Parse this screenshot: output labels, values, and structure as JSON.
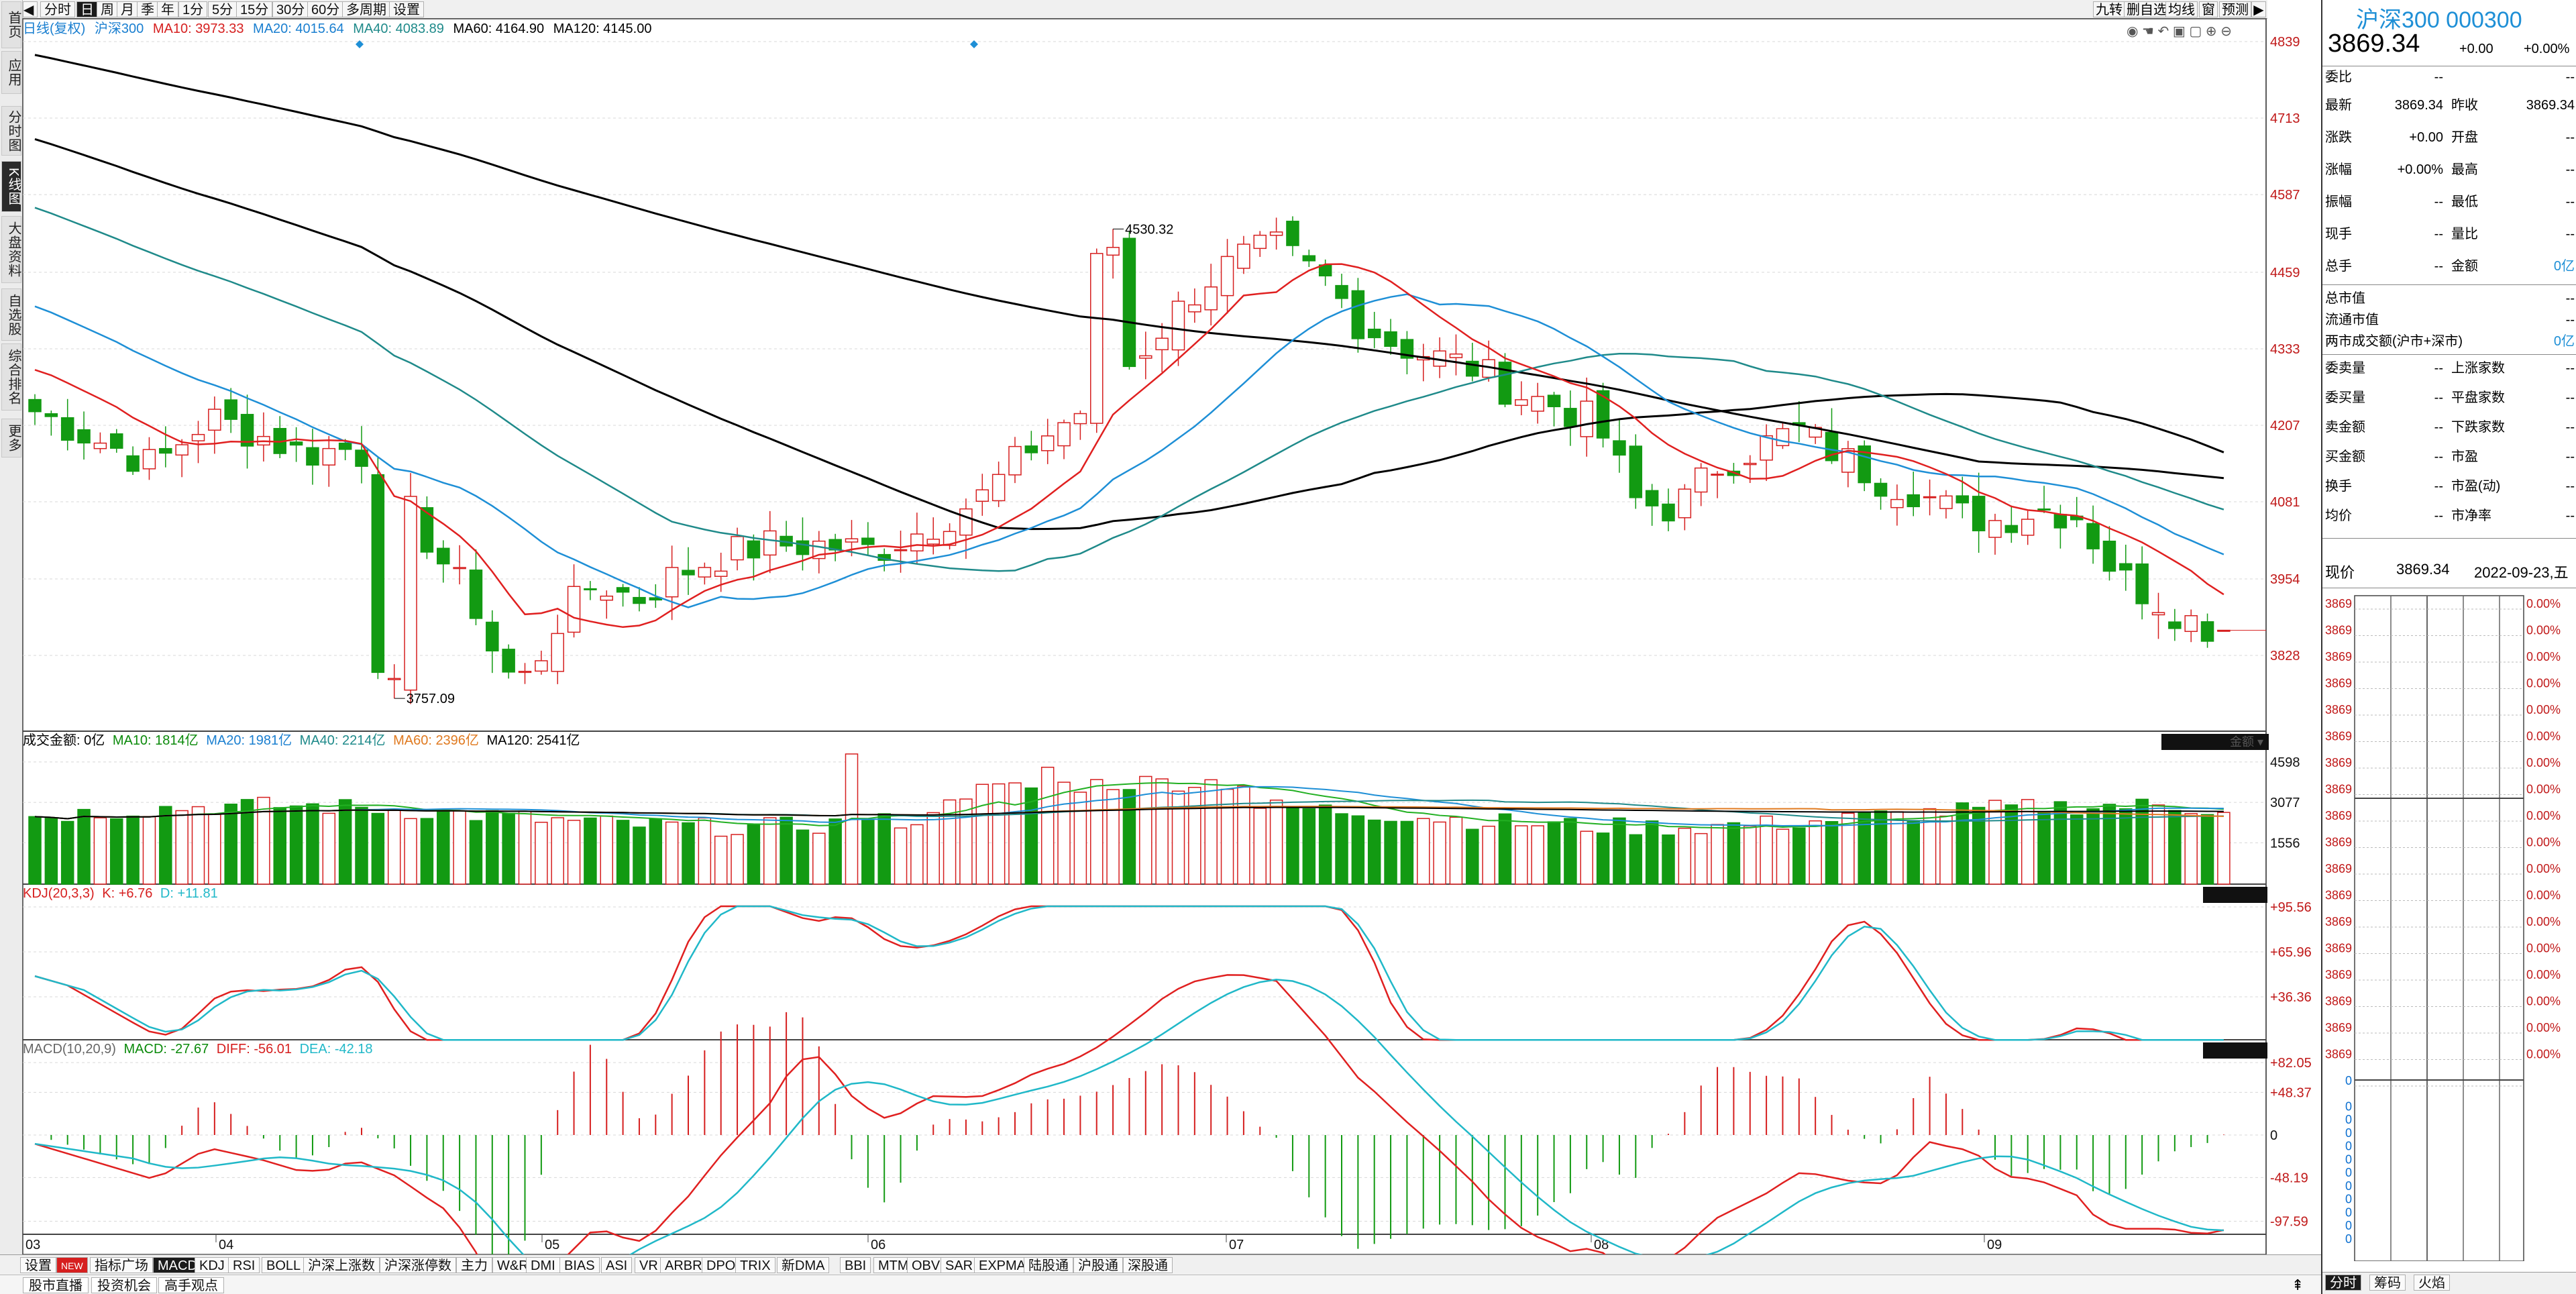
{
  "sidebar": {
    "items": [
      {
        "label": "首页",
        "active": false
      },
      {
        "label": "应用",
        "active": false
      },
      {
        "label": "分时图",
        "active": false
      },
      {
        "label": "K线图",
        "active": true
      },
      {
        "label": "大盘资料",
        "active": false
      },
      {
        "label": "自选股",
        "active": false
      },
      {
        "label": "综合排名",
        "active": false
      },
      {
        "label": "更多",
        "active": false
      }
    ]
  },
  "toolbar": {
    "periods": [
      "分时",
      "日",
      "周",
      "月",
      "季",
      "年",
      "1分",
      "5分",
      "15分",
      "30分",
      "60分",
      "多周期",
      "设置"
    ],
    "active_period": "日",
    "right_tools": [
      "九转",
      "删自选",
      "均线",
      "窗",
      "预测"
    ]
  },
  "ma_info": {
    "chart_name": "日线(复权)",
    "stock": "沪深300",
    "ma10": "MA10: 3973.33",
    "ma20": "MA20: 4015.64",
    "ma40": "MA40: 4083.89",
    "ma60": "MA60: 4164.90",
    "ma120": "MA120: 4145.00"
  },
  "price_axis": [
    "4839",
    "4713",
    "4587",
    "4459",
    "4333",
    "4207",
    "4081",
    "3954",
    "3828"
  ],
  "annotations": {
    "high": "4530.32",
    "low": "3757.09"
  },
  "volume": {
    "label": "成交金额: 0亿",
    "ma10": "MA10: 1814亿",
    "ma20": "MA20: 1981亿",
    "ma40": "MA40: 2214亿",
    "ma60": "MA60: 2396亿",
    "ma120": "MA120: 2541亿",
    "tag": "金额",
    "axis": [
      "4598",
      "3077",
      "1556"
    ]
  },
  "kdj": {
    "label": "KDJ(20,3,3)",
    "k": "K: +6.76",
    "d": "D: +11.81",
    "axis": [
      "+95.56",
      "+65.96",
      "+36.36"
    ]
  },
  "macd": {
    "label": "MACD(10,20,9)",
    "macd": "MACD: -27.67",
    "diff": "DIFF: -56.01",
    "dea": "DEA: -42.18",
    "axis": [
      "+82.05",
      "+48.37",
      "0",
      "-48.19",
      "-97.59"
    ]
  },
  "x_axis": [
    "03",
    "04",
    "05",
    "06",
    "07",
    "08",
    "09"
  ],
  "indicator_tabs": [
    "设置",
    "NEW",
    "指标广场",
    "MACD",
    "KDJ",
    "RSI",
    "BOLL",
    "沪深上涨数",
    "沪深涨停数",
    "主力",
    "W&R",
    "DMI",
    "BIAS",
    "ASI",
    "VR",
    "ARBR",
    "DPO",
    "TRIX",
    "新DMA",
    "BBI",
    "MTM",
    "OBV",
    "SAR",
    "EXPMA",
    "陆股通",
    "沪股通",
    "深股通"
  ],
  "active_indicator": "MACD",
  "news_tabs": [
    "股市直播",
    "投资机会",
    "高手观点"
  ],
  "quote": {
    "title": "沪深300 000300",
    "price": "3869.34",
    "change": "+0.00",
    "change_pct": "+0.00%",
    "rows": [
      {
        "l1": "委比",
        "v1": "--",
        "l2": "",
        "v2": "--"
      },
      {
        "l1": "最新",
        "v1": "3869.34",
        "l2": "昨收",
        "v2": "3869.34"
      },
      {
        "l1": "涨跌",
        "v1": "+0.00",
        "l2": "开盘",
        "v2": "--"
      },
      {
        "l1": "涨幅",
        "v1": "+0.00%",
        "l2": "最高",
        "v2": "--"
      },
      {
        "l1": "振幅",
        "v1": "--",
        "l2": "最低",
        "v2": "--"
      },
      {
        "l1": "现手",
        "v1": "--",
        "l2": "量比",
        "v2": "--"
      },
      {
        "l1": "总手",
        "v1": "--",
        "l2": "金额",
        "v2": "0亿"
      }
    ],
    "mkt": [
      {
        "l": "总市值",
        "v": "--"
      },
      {
        "l": "流通市值",
        "v": "--"
      },
      {
        "l": "两市成交额(沪市+深市)",
        "v": "0亿"
      }
    ],
    "rows2": [
      {
        "l1": "委卖量",
        "v1": "--",
        "l2": "上涨家数",
        "v2": "--"
      },
      {
        "l1": "委买量",
        "v1": "--",
        "l2": "平盘家数",
        "v2": "--"
      },
      {
        "l1": "卖金额",
        "v1": "--",
        "l2": "下跌家数",
        "v2": "--"
      },
      {
        "l1": "买金额",
        "v1": "--",
        "l2": "市盈",
        "v2": "--"
      },
      {
        "l1": "换手",
        "v1": "--",
        "l2": "市盈(动)",
        "v2": "--"
      },
      {
        "l1": "均价",
        "v1": "--",
        "l2": "市净率",
        "v2": "--"
      }
    ],
    "now_label": "现价",
    "now_price": "3869.34",
    "date": "2022-09-23,五",
    "mini_left": "3869",
    "mini_right": "0.00%",
    "mini_left_zero": "0",
    "tabs": [
      "分时",
      "筹码",
      "火焰"
    ]
  },
  "chart_data": {
    "type": "candlestick",
    "price_range": [
      3757,
      4839
    ],
    "high": 4530.32,
    "low": 3757.09,
    "last": 3869.34,
    "colors": {
      "up": "#d61f1f",
      "down": "#129a12",
      "ma10": "#e02020",
      "ma20": "#1e8fd6",
      "ma40": "#1f8a8a",
      "ma60": "#000000",
      "ma120": "#000000"
    }
  }
}
